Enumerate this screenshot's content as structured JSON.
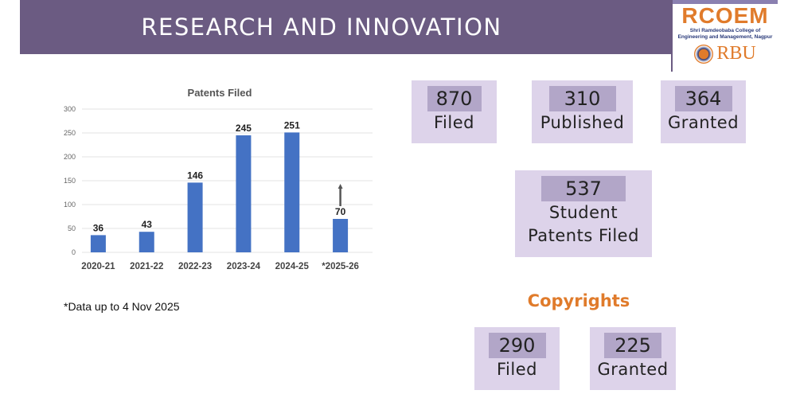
{
  "header": {
    "title": "RESEARCH AND INNOVATION"
  },
  "logo": {
    "name": "RCOEM",
    "subtitle_1": "Shri Ramdeobaba College of",
    "subtitle_2": "Engineering and Management, Nagpur",
    "secondary": "RBU"
  },
  "chart_data": {
    "type": "bar",
    "title": "Patents Filed",
    "categories": [
      "2020-21",
      "2021-22",
      "2022-23",
      "2023-24",
      "2024-25",
      "*2025-26"
    ],
    "values": [
      36,
      43,
      146,
      245,
      251,
      70
    ],
    "ylim": [
      0,
      300
    ],
    "yticks": [
      0,
      50,
      100,
      150,
      200,
      250,
      300
    ],
    "grid": true,
    "bar_color": "#4472c4",
    "annotation": "upward arrow above *2025-26 bar"
  },
  "note": "*Data up to 4 Nov 2025",
  "patents": {
    "filed": {
      "value": "870",
      "label": "Filed"
    },
    "published": {
      "value": "310",
      "label": "Published"
    },
    "granted": {
      "value": "364",
      "label": "Granted"
    },
    "student": {
      "value": "537",
      "label_1": "Student",
      "label_2": "Patents Filed"
    }
  },
  "copyrights": {
    "title": "Copyrights",
    "filed": {
      "value": "290",
      "label": "Filed"
    },
    "granted": {
      "value": "225",
      "label": "Granted"
    }
  }
}
